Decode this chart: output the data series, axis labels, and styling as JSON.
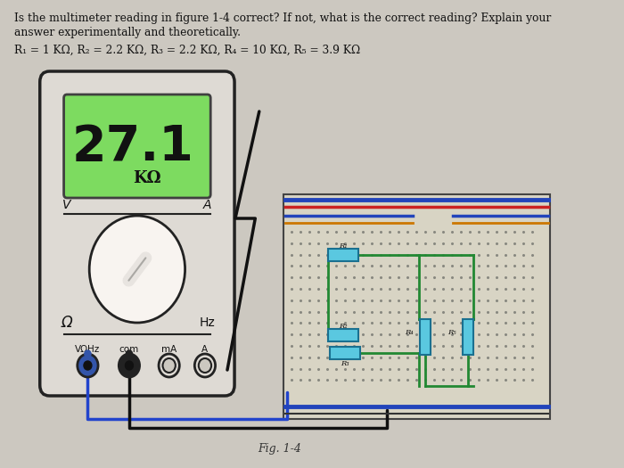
{
  "bg_color": "#ccc8c0",
  "title_line1": "Is the multimeter reading in figure 1-4 correct? If not, what is the correct reading? Explain your",
  "title_line2": "answer experimentally and theoretically.",
  "resistor_text": "R₁ = 1 KΩ, R₂ = 2.2 KΩ, R₃ = 2.2 KΩ, R₄ = 10 KΩ, R₅ = 3.9 KΩ",
  "display_reading": "27.1",
  "display_unit": "KΩ",
  "fig_label": "Fig. 1-4",
  "display_color": "#7ddb60",
  "meter_body_color": "#dedad4",
  "wire_blue": "#2244cc",
  "wire_black": "#101010",
  "green_wire": "#228833",
  "resistor_color": "#5ac8e0",
  "resistor_edge": "#1a7090",
  "board_color": "#d8d4c4",
  "rail_blue": "#2244bb",
  "rail_red": "#cc2222",
  "rail_orange": "#cc7700"
}
